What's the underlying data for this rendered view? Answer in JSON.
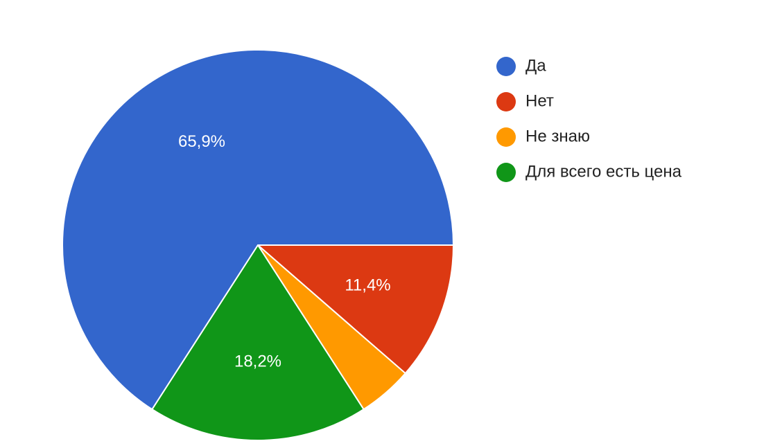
{
  "chart_data": {
    "type": "pie",
    "title": "",
    "legend_position": "right",
    "slices": [
      {
        "label": "Да",
        "value": 65.9,
        "display": "65,9%",
        "color": "#3366cc"
      },
      {
        "label": "Нет",
        "value": 11.4,
        "display": "11,4%",
        "color": "#dc3912"
      },
      {
        "label": "Не знаю",
        "value": 4.5,
        "display": "",
        "color": "#ff9900"
      },
      {
        "label": "Для всего есть цена",
        "value": 18.2,
        "display": "18,2%",
        "color": "#109618"
      }
    ]
  }
}
